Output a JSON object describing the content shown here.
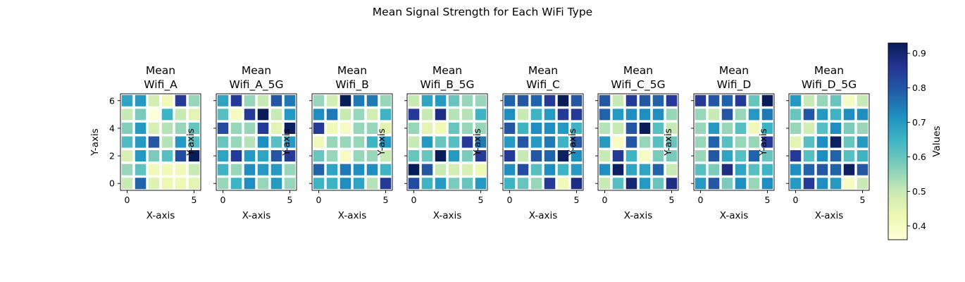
{
  "figure": {
    "suptitle": "Mean Signal Strength for Each WiFi Type"
  },
  "colorbar": {
    "label": "Values",
    "min": 0.36,
    "max": 0.93,
    "ticks": [
      0.4,
      0.5,
      0.6,
      0.7,
      0.8,
      0.9
    ],
    "tick_labels": [
      "0.4",
      "0.5",
      "0.6",
      "0.7",
      "0.8",
      "0.9"
    ],
    "colormap": "YlGnBu",
    "colormap_stops": [
      "#ffffd9",
      "#edf8b1",
      "#c7e9b4",
      "#7fcdbb",
      "#41b6c4",
      "#1d91c0",
      "#225ea8",
      "#253494",
      "#081d58"
    ]
  },
  "chart_data": {
    "type": "heatmap",
    "x_tick_labels": [
      "0",
      "5"
    ],
    "y_tick_labels": [
      "0",
      "2",
      "4",
      "6"
    ],
    "xlabel": "X-axis",
    "ylabel": "Y-axis",
    "x_range": [
      0,
      5
    ],
    "y_range": [
      0,
      6
    ],
    "grid": false,
    "cell_gap_color": "#ffffff",
    "panels": [
      {
        "title": [
          "Mean",
          "Wifi_A"
        ],
        "values": [
          [
            0.5,
            0.78,
            0.46,
            0.43,
            0.43,
            0.45
          ],
          [
            0.55,
            0.61,
            0.42,
            0.42,
            0.42,
            0.5
          ],
          [
            0.47,
            0.7,
            0.58,
            0.62,
            0.82,
            0.93
          ],
          [
            0.63,
            0.7,
            0.8,
            0.52,
            0.7,
            0.62
          ],
          [
            0.57,
            0.7,
            0.47,
            0.52,
            0.55,
            0.6
          ],
          [
            0.5,
            0.58,
            0.36,
            0.65,
            0.5,
            0.45
          ],
          [
            0.68,
            0.7,
            0.48,
            0.42,
            0.85,
            0.55
          ]
        ]
      },
      {
        "title": [
          "Mean",
          "Wifi_A_5G"
        ],
        "values": [
          [
            0.55,
            0.65,
            0.72,
            0.55,
            0.7,
            0.55
          ],
          [
            0.65,
            0.55,
            0.72,
            0.7,
            0.7,
            0.55
          ],
          [
            0.68,
            0.85,
            0.7,
            0.68,
            0.8,
            0.85
          ],
          [
            0.6,
            0.55,
            0.52,
            0.72,
            0.62,
            0.7
          ],
          [
            0.82,
            0.55,
            0.55,
            0.85,
            0.45,
            0.92
          ],
          [
            0.62,
            0.4,
            0.85,
            0.93,
            0.5,
            0.7
          ],
          [
            0.68,
            0.85,
            0.55,
            0.5,
            0.8,
            0.75
          ]
        ]
      },
      {
        "title": [
          "Mean",
          "Wifi_B"
        ],
        "values": [
          [
            0.65,
            0.65,
            0.72,
            0.68,
            0.52,
            0.85
          ],
          [
            0.78,
            0.68,
            0.75,
            0.72,
            0.72,
            0.65
          ],
          [
            0.6,
            0.55,
            0.4,
            0.55,
            0.55,
            0.5
          ],
          [
            0.42,
            0.55,
            0.55,
            0.55,
            0.65,
            0.7
          ],
          [
            0.85,
            0.42,
            0.4,
            0.55,
            0.55,
            0.45
          ],
          [
            0.72,
            0.75,
            0.5,
            0.55,
            0.48,
            0.65
          ],
          [
            0.55,
            0.48,
            0.93,
            0.75,
            0.75,
            0.55
          ]
        ]
      },
      {
        "title": [
          "Mean",
          "Wifi_B_5G"
        ],
        "values": [
          [
            0.82,
            0.65,
            0.7,
            0.58,
            0.6,
            0.7
          ],
          [
            0.93,
            0.8,
            0.5,
            0.48,
            0.47,
            0.43
          ],
          [
            0.6,
            0.6,
            0.93,
            0.7,
            0.58,
            0.85
          ],
          [
            0.5,
            0.7,
            0.6,
            0.62,
            0.85,
            0.75
          ],
          [
            0.55,
            0.45,
            0.42,
            0.6,
            0.55,
            0.55
          ],
          [
            0.85,
            0.5,
            0.88,
            0.52,
            0.52,
            0.65
          ],
          [
            0.5,
            0.68,
            0.7,
            0.6,
            0.55,
            0.55
          ]
        ]
      },
      {
        "title": [
          "Mean",
          "Wifi_C"
        ],
        "values": [
          [
            0.65,
            0.6,
            0.55,
            0.85,
            0.42,
            0.88
          ],
          [
            0.72,
            0.82,
            0.62,
            0.72,
            0.65,
            0.7
          ],
          [
            0.85,
            0.5,
            0.8,
            0.78,
            0.92,
            0.72
          ],
          [
            0.7,
            0.8,
            0.7,
            0.75,
            0.65,
            0.8
          ],
          [
            0.8,
            0.65,
            0.72,
            0.72,
            0.7,
            0.65
          ],
          [
            0.72,
            0.5,
            0.65,
            0.7,
            0.85,
            0.85
          ],
          [
            0.78,
            0.8,
            0.78,
            0.85,
            0.93,
            0.8
          ]
        ]
      },
      {
        "title": [
          "Mean",
          "Wifi_C_5G"
        ],
        "values": [
          [
            0.5,
            0.62,
            0.9,
            0.7,
            0.6,
            0.88
          ],
          [
            0.72,
            0.92,
            0.68,
            0.68,
            0.78,
            0.5
          ],
          [
            0.5,
            0.85,
            0.65,
            0.4,
            0.58,
            0.58
          ],
          [
            0.7,
            0.4,
            0.8,
            0.55,
            0.62,
            0.6
          ],
          [
            0.52,
            0.5,
            0.8,
            0.93,
            0.62,
            0.5
          ],
          [
            0.78,
            0.7,
            0.72,
            0.72,
            0.72,
            0.55
          ],
          [
            0.8,
            0.5,
            0.85,
            0.8,
            0.78,
            0.85
          ]
        ]
      },
      {
        "title": [
          "Mean",
          "Wifi_D"
        ],
        "values": [
          [
            0.7,
            0.8,
            0.58,
            0.72,
            0.55,
            0.72
          ],
          [
            0.62,
            0.58,
            0.88,
            0.68,
            0.62,
            0.65
          ],
          [
            0.55,
            0.8,
            0.68,
            0.62,
            0.78,
            0.6
          ],
          [
            0.55,
            0.78,
            0.62,
            0.55,
            0.55,
            0.85
          ],
          [
            0.55,
            0.7,
            0.55,
            0.62,
            0.42,
            0.65
          ],
          [
            0.55,
            0.5,
            0.8,
            0.55,
            0.7,
            0.75
          ],
          [
            0.85,
            0.8,
            0.78,
            0.85,
            0.6,
            0.93
          ]
        ]
      },
      {
        "title": [
          "Mean",
          "Wifi_D_5G"
        ],
        "values": [
          [
            0.7,
            0.85,
            0.72,
            0.7,
            0.4,
            0.5
          ],
          [
            0.72,
            0.78,
            0.8,
            0.78,
            0.92,
            0.8
          ],
          [
            0.85,
            0.62,
            0.72,
            0.78,
            0.62,
            0.65
          ],
          [
            0.45,
            0.62,
            0.72,
            0.92,
            0.6,
            0.7
          ],
          [
            0.55,
            0.48,
            0.62,
            0.72,
            0.58,
            0.55
          ],
          [
            0.6,
            0.8,
            0.7,
            0.65,
            0.72,
            0.72
          ],
          [
            0.7,
            0.5,
            0.55,
            0.6,
            0.4,
            0.5
          ]
        ]
      }
    ]
  }
}
